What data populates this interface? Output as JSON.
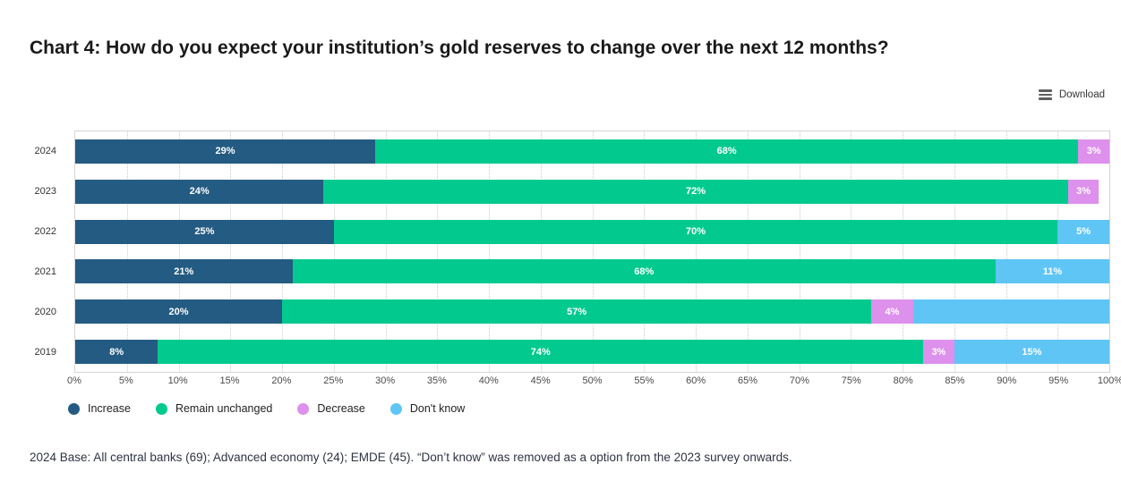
{
  "title": "Chart 4: How do you expect your institution’s gold reserves to change over the next 12 months?",
  "toolbar": {
    "download_label": "Download",
    "menu_icon": "hamburger-icon"
  },
  "footer": "2024 Base: All central banks (69); Advanced economy (24); EMDE (45). “Don’t know” was removed as a option from the 2023 survey onwards.",
  "chart_data": {
    "type": "bar",
    "stacked": true,
    "orientation": "horizontal",
    "categories": [
      "2024",
      "2023",
      "2022",
      "2021",
      "2020",
      "2019"
    ],
    "series": [
      {
        "name": "Increase",
        "color": "#245B83",
        "values": [
          29,
          24,
          25,
          21,
          20,
          8
        ],
        "labels": [
          "29%",
          "24%",
          "25%",
          "21%",
          "20%",
          "8%"
        ]
      },
      {
        "name": "Remain unchanged",
        "color": "#02CA8E",
        "values": [
          68,
          72,
          70,
          68,
          57,
          74
        ],
        "labels": [
          "68%",
          "72%",
          "70%",
          "68%",
          "57%",
          "74%"
        ]
      },
      {
        "name": "Decrease",
        "color": "#DD90EC",
        "values": [
          3,
          3,
          0,
          0,
          4,
          3
        ],
        "labels": [
          "3%",
          "3%",
          "",
          "",
          "4%",
          "3%"
        ]
      },
      {
        "name": "Don't know",
        "color": "#5FC5F5",
        "values": [
          0,
          0,
          5,
          11,
          19,
          15
        ],
        "labels": [
          "",
          "",
          "5%",
          "11%",
          "",
          "15%"
        ]
      }
    ],
    "xlim": [
      0,
      100
    ],
    "x_ticks": [
      "0%",
      "5%",
      "10%",
      "15%",
      "20%",
      "25%",
      "30%",
      "35%",
      "40%",
      "45%",
      "50%",
      "55%",
      "60%",
      "65%",
      "70%",
      "75%",
      "80%",
      "85%",
      "90%",
      "95%",
      "100%"
    ],
    "grid": "dotted-vertical-every-5pct",
    "legend_position": "bottom-left",
    "data_label_color": "#ffffff",
    "notes": "2023 row totals 99%, bar ends short of 100%; 2020 Don't-know segment (19%) shown without a data label"
  }
}
